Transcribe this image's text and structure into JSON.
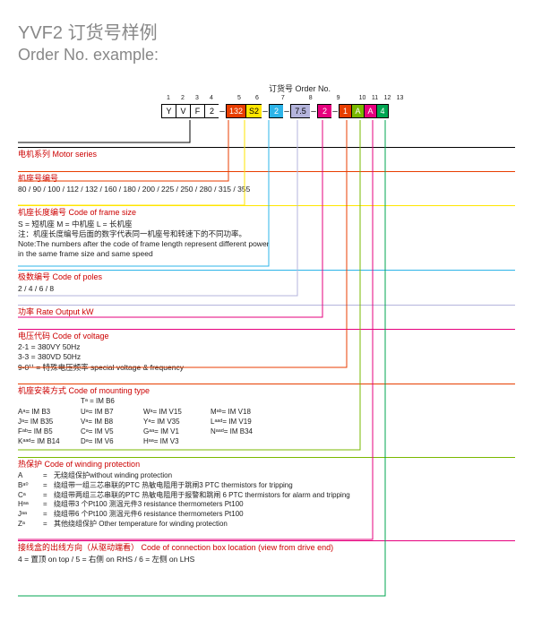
{
  "title_cn": "YVF2 订货号样例",
  "title_en": "Order No. example:",
  "order_label": "订货号 Order No.",
  "positions": [
    "1",
    "2",
    "3",
    "4",
    "5",
    "6",
    "7",
    "8",
    "9",
    "10",
    "11",
    "12",
    "13"
  ],
  "boxes": {
    "g1": [
      {
        "t": "Y",
        "w": 16,
        "bg": "#fff"
      },
      {
        "t": "V",
        "w": 16,
        "bg": "#fff"
      },
      {
        "t": "F",
        "w": 16,
        "bg": "#fff"
      },
      {
        "t": "2",
        "w": 16,
        "bg": "#fff"
      }
    ],
    "g2": [
      {
        "t": "132",
        "w": 22,
        "bg": "#e83e00"
      },
      {
        "t": "S2",
        "w": 18,
        "bg": "#ffe600"
      }
    ],
    "g3": [
      {
        "t": "2",
        "w": 16,
        "bg": "#2db4e8"
      }
    ],
    "g4": [
      {
        "t": "7.5",
        "w": 22,
        "bg": "#b4b4dc"
      }
    ],
    "g5": [
      {
        "t": "2",
        "w": 16,
        "bg": "#e6007e"
      }
    ],
    "g6": [
      {
        "t": "1",
        "w": 14,
        "bg": "#e83e00"
      },
      {
        "t": "A",
        "w": 14,
        "bg": "#7ab800"
      },
      {
        "t": "A",
        "w": 14,
        "bg": "#e6007e"
      },
      {
        "t": "4",
        "w": 14,
        "bg": "#00a651"
      }
    ]
  },
  "colors": {
    "s1": "#000",
    "s2": "#e83e00",
    "s3": "#ffe600",
    "s4": "#2db4e8",
    "s5": "#b4b4dc",
    "s6": "#e6007e",
    "s7": "#e83e00",
    "s8": "#7ab800",
    "s9": "#e6007e",
    "s10": "#00a651"
  },
  "sec1": {
    "title": "电机系列 Motor series",
    "body": ""
  },
  "sec2": {
    "title": "机座号编号",
    "body": "80 / 90 / 100 / 112 / 132 / 160 / 180 / 200 / 225 / 250 / 280 / 315 / 355"
  },
  "sec3": {
    "title": "机座长度编号 Code of frame size",
    "l1": "S = 短机座  M = 中机座  L = 长机座",
    "l2": "注：机座长度编号后面的数字代表同一机座号和转速下的不同功率。",
    "l3": "Note:The numbers after the code of frame length represent different power",
    "l4": "in the same frame size and same speed"
  },
  "sec4": {
    "title": "极数编号 Code of poles",
    "body": "2 / 4 / 6 / 8"
  },
  "sec5": {
    "title": "功率 Rate Output kW",
    "body": ""
  },
  "sec6": {
    "title": "电压代码 Code of voltage",
    "l1": "2-1 = 380VY 50Hz",
    "l2": "3-3 = 380VD 50Hz",
    "l3": "9-0¹¹ = 特殊电压频率 special voltage & frequency"
  },
  "sec7": {
    "title": "机座安装方式  Code of mounting type",
    "head": "Tᵃ = IM B6",
    "rows": [
      [
        "Aᵃ= IM B3",
        "Uᵃ= IM B7",
        "Wᵃ= IM V15",
        "Mᵃᵇ= IM V18"
      ],
      [
        "Jᵃ= IM B35",
        "Vᵃ= IM B8",
        "Yᵃ= IM V35",
        "Lᵃᵃᵈ= IM V19"
      ],
      [
        "Fᵃᵇ= IM B5",
        "Cᵃ= IM V5",
        "Gᵃᵃ= IM V1",
        "Nᵃᵃᵈ= IM B34"
      ],
      [
        "Kᵃᵃᵈ= IM B14",
        "Dᵃ= IM V6",
        "Hᵃᵃ= IM V3",
        ""
      ]
    ]
  },
  "sec8": {
    "title": "热保护 Code of winding protection",
    "rows": [
      [
        "A",
        "=",
        "无绕组保护without winding protection"
      ],
      [
        "Bᵃ⁰",
        "=",
        "绕组带一组三芯串联的PTC 热敏电阻用于跳闸3 PTC thermistors for tripping"
      ],
      [
        "Cᵃ",
        "=",
        "绕组带两组三芯串联的PTC 热敏电阻用于报警和跳闸 6 PTC thermistors for alarm and tripping"
      ],
      [
        "Hᵃᵃ",
        "=",
        "绕组带3 个Pt100 测温元件3 resistance thermometers Pt100"
      ],
      [
        "Jᵃᵃ",
        "=",
        "绕组带6 个Pt100 测温元件6 resistance thermometers Pt100"
      ],
      [
        "Zᵃ",
        "=",
        "其他绕组保护  Other temperature for winding protection"
      ]
    ]
  },
  "sec9": {
    "title": "接线盒的出线方向（从驱动端看） Code of connection box location (view from drive end)",
    "body": "4 = 置顶 on top / 5 = 右侧 on RHS / 6 = 左侧 on LHS"
  }
}
